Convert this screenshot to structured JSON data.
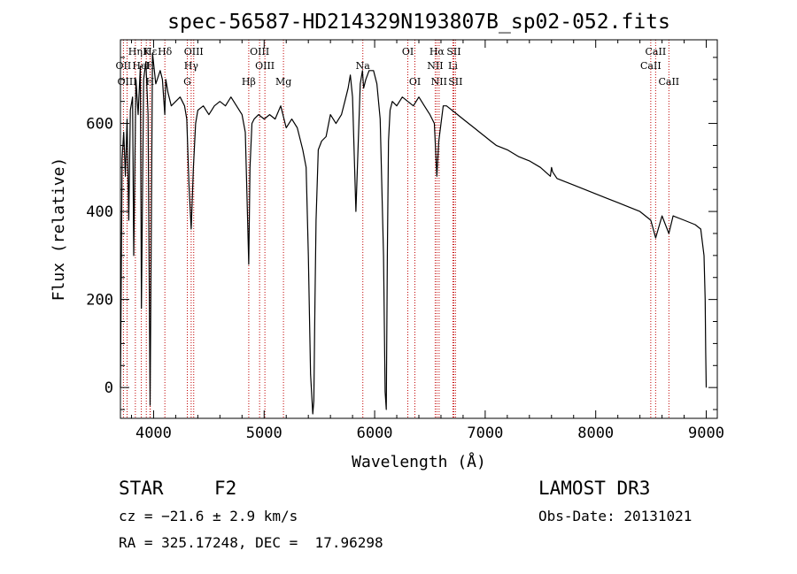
{
  "chart_data": {
    "type": "line",
    "title": "spec-56587-HD214329N193807B_sp02-052.fits",
    "xlabel": "Wavelength (Å)",
    "ylabel": "Flux (relative)",
    "xlim": [
      3700,
      9100
    ],
    "ylim": [
      -70,
      790
    ],
    "xticks": [
      4000,
      5000,
      6000,
      7000,
      8000,
      9000
    ],
    "yticks": [
      0,
      200,
      400,
      600
    ],
    "grid": false,
    "series": [
      {
        "name": "flux",
        "x": [
          3700,
          3715,
          3730,
          3745,
          3760,
          3775,
          3790,
          3810,
          3820,
          3840,
          3860,
          3880,
          3890,
          3910,
          3930,
          3950,
          3968,
          3990,
          4020,
          4060,
          4080,
          4101,
          4110,
          4130,
          4160,
          4200,
          4240,
          4280,
          4300,
          4320,
          4340,
          4360,
          4380,
          4400,
          4450,
          4500,
          4550,
          4600,
          4650,
          4700,
          4750,
          4800,
          4830,
          4850,
          4861,
          4872,
          4890,
          4910,
          4950,
          5000,
          5050,
          5100,
          5150,
          5200,
          5250,
          5300,
          5350,
          5380,
          5400,
          5420,
          5440,
          5450,
          5460,
          5470,
          5490,
          5520,
          5560,
          5600,
          5650,
          5700,
          5730,
          5760,
          5780,
          5800,
          5830,
          5870,
          5890,
          5900,
          5920,
          5950,
          5990,
          6020,
          6050,
          6080,
          6095,
          6105,
          6115,
          6125,
          6140,
          6160,
          6200,
          6250,
          6300,
          6350,
          6400,
          6450,
          6500,
          6540,
          6563,
          6580,
          6620,
          6650,
          6700,
          6750,
          6800,
          6850,
          6900,
          6950,
          7000,
          7050,
          7100,
          7200,
          7300,
          7400,
          7500,
          7590,
          7600,
          7610,
          7650,
          7700,
          7800,
          7900,
          8000,
          8100,
          8200,
          8300,
          8400,
          8498,
          8542,
          8600,
          8662,
          8700,
          8800,
          8900,
          8950,
          8980,
          8990,
          8995,
          9000
        ],
        "y": [
          0,
          520,
          580,
          480,
          610,
          380,
          630,
          660,
          300,
          700,
          620,
          730,
          180,
          700,
          740,
          620,
          -40,
          760,
          690,
          720,
          700,
          620,
          700,
          670,
          640,
          650,
          660,
          640,
          610,
          460,
          360,
          500,
          600,
          630,
          640,
          620,
          640,
          650,
          640,
          660,
          640,
          620,
          580,
          390,
          280,
          500,
          600,
          610,
          620,
          610,
          620,
          610,
          640,
          590,
          610,
          590,
          540,
          500,
          300,
          30,
          -60,
          -30,
          200,
          380,
          540,
          560,
          570,
          620,
          600,
          620,
          650,
          680,
          710,
          660,
          400,
          690,
          720,
          680,
          700,
          720,
          720,
          690,
          610,
          300,
          -10,
          -50,
          300,
          560,
          630,
          650,
          640,
          660,
          650,
          640,
          660,
          640,
          620,
          600,
          480,
          560,
          640,
          640,
          630,
          620,
          610,
          600,
          590,
          580,
          570,
          560,
          550,
          540,
          525,
          515,
          500,
          480,
          500,
          490,
          475,
          470,
          460,
          450,
          440,
          430,
          420,
          410,
          400,
          380,
          340,
          390,
          350,
          390,
          380,
          370,
          360,
          300,
          200,
          80,
          0
        ]
      }
    ],
    "line_markers": [
      {
        "label": "Hδ",
        "x": 4102,
        "row": 1
      },
      {
        "label": "K",
        "x": 3934,
        "row": 1
      },
      {
        "label": "Hε",
        "x": 3970,
        "row": 1
      },
      {
        "label": "Hη",
        "x": 3835,
        "row": 1
      },
      {
        "label": "OII",
        "x": 3727,
        "row": 2
      },
      {
        "label": "HeI",
        "x": 3889,
        "row": 2
      },
      {
        "label": "H",
        "x": 3968,
        "row": 2
      },
      {
        "label": "OIII",
        "x": 3760,
        "row": 3
      },
      {
        "label": "H",
        "x": 3968,
        "row": 3
      },
      {
        "label": "OIII",
        "x": 4363,
        "row": 1
      },
      {
        "label": "Hγ",
        "x": 4340,
        "row": 2
      },
      {
        "label": "G",
        "x": 4305,
        "row": 3
      },
      {
        "label": "OIII",
        "x": 4959,
        "row": 1
      },
      {
        "label": "OIII",
        "x": 5007,
        "row": 2
      },
      {
        "label": "Hβ",
        "x": 4861,
        "row": 3
      },
      {
        "label": "Mg",
        "x": 5175,
        "row": 3
      },
      {
        "label": "Na",
        "x": 5893,
        "row": 2
      },
      {
        "label": "OI",
        "x": 6300,
        "row": 1
      },
      {
        "label": "OI",
        "x": 6364,
        "row": 3
      },
      {
        "label": "Hα",
        "x": 6563,
        "row": 1
      },
      {
        "label": "SII",
        "x": 6716,
        "row": 1
      },
      {
        "label": "NII",
        "x": 6548,
        "row": 2
      },
      {
        "label": "Li",
        "x": 6708,
        "row": 2
      },
      {
        "label": "NII",
        "x": 6583,
        "row": 3
      },
      {
        "label": "SII",
        "x": 6731,
        "row": 3
      },
      {
        "label": "CaII",
        "x": 8542,
        "row": 1
      },
      {
        "label": "CaII",
        "x": 8498,
        "row": 2
      },
      {
        "label": "CaII",
        "x": 8662,
        "row": 3
      }
    ]
  },
  "info": {
    "object_class": "STAR",
    "subclass": "F2",
    "redshift": "cz = −21.6 ± 2.9 km/s",
    "coords": "RA = 325.17248, DEC =  17.96298",
    "survey": "LAMOST DR3",
    "obs_date": "Obs-Date: 20131021"
  },
  "colors": {
    "axis": "#000000",
    "spectrum": "#000000",
    "marker_line": "#c00000"
  }
}
